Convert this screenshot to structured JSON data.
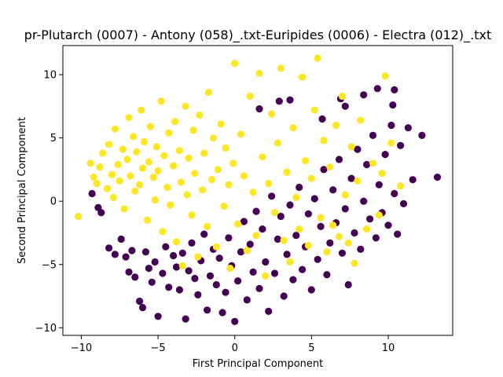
{
  "chart_data": {
    "type": "scatter",
    "title": "pr-Plutarch (0007) - Antony (058)_.txt-Euripides (0006) - Electra (012)_.txt",
    "xlabel": "First Principal Component",
    "ylabel": "Second Principal Component",
    "xlim": [
      -11.2,
      14.2
    ],
    "ylim": [
      -10.6,
      12.3
    ],
    "x_ticks": [
      -10,
      -5,
      0,
      5,
      10
    ],
    "y_ticks": [
      -10,
      -5,
      0,
      5,
      10
    ],
    "x_tick_labels": [
      "−10",
      "−5",
      "0",
      "5",
      "10"
    ],
    "y_tick_labels": [
      "−10",
      "−5",
      "0",
      "5",
      "10"
    ],
    "grid": false,
    "legend": "none",
    "colors": {
      "class0": "#440154",
      "class1": "#fde725"
    },
    "series": [
      {
        "color": "#440154",
        "points": [
          [
            -9.3,
            0.6
          ],
          [
            -8.9,
            -0.5
          ],
          [
            -8.7,
            -0.9
          ],
          [
            -8.2,
            -3.7
          ],
          [
            -7.8,
            -4.2
          ],
          [
            -7.4,
            -3.0
          ],
          [
            -7.1,
            -4.4
          ],
          [
            -6.9,
            -5.6
          ],
          [
            -6.7,
            -3.9
          ],
          [
            -6.5,
            -6.0
          ],
          [
            -6.2,
            -7.9
          ],
          [
            -6.0,
            -8.4
          ],
          [
            -5.8,
            -4.0
          ],
          [
            -5.6,
            -5.3
          ],
          [
            -5.4,
            -6.4
          ],
          [
            -5.2,
            -4.8
          ],
          [
            -5.0,
            -9.1
          ],
          [
            -4.7,
            -5.7
          ],
          [
            -4.5,
            -3.6
          ],
          [
            -4.3,
            -6.8
          ],
          [
            -4.0,
            -4.3
          ],
          [
            -3.8,
            -5.2
          ],
          [
            -3.6,
            -7.0
          ],
          [
            -3.4,
            -4.1
          ],
          [
            -3.2,
            -9.3
          ],
          [
            -3.0,
            -5.5
          ],
          [
            -2.8,
            -3.3
          ],
          [
            -2.6,
            -6.1
          ],
          [
            -2.4,
            -7.4
          ],
          [
            -2.2,
            -4.7
          ],
          [
            -2.0,
            -2.6
          ],
          [
            -1.8,
            -8.6
          ],
          [
            -1.6,
            -5.9
          ],
          [
            -1.4,
            -3.8
          ],
          [
            -1.2,
            -6.6
          ],
          [
            -1.0,
            -4.5
          ],
          [
            -0.8,
            -8.8
          ],
          [
            -0.6,
            -7.2
          ],
          [
            -0.4,
            -2.9
          ],
          [
            -0.2,
            -5.1
          ],
          [
            0.0,
            -9.5
          ],
          [
            0.2,
            -6.3
          ],
          [
            0.4,
            -4.0
          ],
          [
            0.6,
            -1.6
          ],
          [
            0.8,
            -7.8
          ],
          [
            1.0,
            -3.4
          ],
          [
            1.2,
            -5.6
          ],
          [
            1.4,
            -0.8
          ],
          [
            1.6,
            -6.9
          ],
          [
            1.8,
            -2.2
          ],
          [
            2.0,
            -4.8
          ],
          [
            2.2,
            -8.7
          ],
          [
            2.4,
            0.4
          ],
          [
            2.6,
            -5.7
          ],
          [
            2.8,
            -3.0
          ],
          [
            3.0,
            -1.2
          ],
          [
            3.2,
            -7.5
          ],
          [
            3.4,
            -4.2
          ],
          [
            3.6,
            -0.3
          ],
          [
            3.8,
            -6.2
          ],
          [
            4.0,
            -2.7
          ],
          [
            4.2,
            1.1
          ],
          [
            4.4,
            -5.4
          ],
          [
            4.6,
            -3.6
          ],
          [
            4.8,
            -1.0
          ],
          [
            5.0,
            -7.0
          ],
          [
            5.2,
            0.2
          ],
          [
            5.4,
            -4.6
          ],
          [
            5.6,
            -2.0
          ],
          [
            5.8,
            2.5
          ],
          [
            6.0,
            -5.8
          ],
          [
            6.2,
            -3.3
          ],
          [
            6.4,
            0.9
          ],
          [
            6.6,
            -1.7
          ],
          [
            6.8,
            3.3
          ],
          [
            7.0,
            -4.1
          ],
          [
            7.2,
            -0.6
          ],
          [
            7.4,
            -6.6
          ],
          [
            7.6,
            1.8
          ],
          [
            7.8,
            -2.5
          ],
          [
            8.0,
            4.1
          ],
          [
            8.2,
            -3.8
          ],
          [
            8.4,
            0.0
          ],
          [
            8.6,
            2.9
          ],
          [
            8.8,
            -1.4
          ],
          [
            9.0,
            5.2
          ],
          [
            9.2,
            -2.9
          ],
          [
            9.4,
            1.3
          ],
          [
            9.6,
            -0.9
          ],
          [
            9.8,
            3.7
          ],
          [
            10.0,
            -1.9
          ],
          [
            10.2,
            6.0
          ],
          [
            10.4,
            0.6
          ],
          [
            10.6,
            -2.6
          ],
          [
            10.8,
            4.4
          ],
          [
            11.0,
            -0.2
          ],
          [
            11.3,
            5.8
          ],
          [
            11.6,
            1.7
          ],
          [
            12.2,
            5.2
          ],
          [
            13.2,
            1.9
          ],
          [
            10.4,
            8.8
          ],
          [
            10.3,
            7.6
          ],
          [
            9.3,
            8.9
          ],
          [
            8.4,
            8.4
          ],
          [
            7.2,
            7.5
          ],
          [
            6.9,
            8.1
          ],
          [
            5.7,
            6.5
          ],
          [
            3.6,
            8.0
          ],
          [
            2.9,
            7.9
          ],
          [
            1.6,
            7.3
          ]
        ]
      },
      {
        "color": "#fde725",
        "points": [
          [
            -10.2,
            -1.2
          ],
          [
            -9.4,
            3.0
          ],
          [
            -9.2,
            1.9
          ],
          [
            -9.0,
            1.4
          ],
          [
            -8.8,
            2.7
          ],
          [
            -8.6,
            3.8
          ],
          [
            -8.3,
            1.0
          ],
          [
            -8.2,
            4.5
          ],
          [
            -8.0,
            2.1
          ],
          [
            -7.9,
            0.3
          ],
          [
            -7.8,
            5.7
          ],
          [
            -7.6,
            2.9
          ],
          [
            -7.5,
            1.6
          ],
          [
            -7.3,
            4.1
          ],
          [
            -7.2,
            -0.6
          ],
          [
            -7.0,
            3.3
          ],
          [
            -6.9,
            6.6
          ],
          [
            -6.8,
            2.0
          ],
          [
            -6.6,
            5.1
          ],
          [
            -6.5,
            0.8
          ],
          [
            -6.4,
            3.9
          ],
          [
            -6.2,
            1.3
          ],
          [
            -6.1,
            7.2
          ],
          [
            -6.0,
            2.6
          ],
          [
            -5.9,
            4.7
          ],
          [
            -5.7,
            -1.5
          ],
          [
            -5.6,
            3.1
          ],
          [
            -5.5,
            5.9
          ],
          [
            -5.3,
            1.9
          ],
          [
            -5.2,
            0.1
          ],
          [
            -5.1,
            4.3
          ],
          [
            -5.0,
            2.4
          ],
          [
            -4.8,
            7.9
          ],
          [
            -4.7,
            -2.4
          ],
          [
            -4.6,
            3.6
          ],
          [
            -4.4,
            1.1
          ],
          [
            -4.3,
            5.4
          ],
          [
            -4.2,
            -0.3
          ],
          [
            -4.0,
            2.8
          ],
          [
            -3.9,
            6.3
          ],
          [
            -3.8,
            -3.2
          ],
          [
            -3.6,
            4.0
          ],
          [
            -3.5,
            1.5
          ],
          [
            -3.4,
            -5.1
          ],
          [
            -3.2,
            7.5
          ],
          [
            -3.1,
            0.5
          ],
          [
            -3.0,
            3.4
          ],
          [
            -2.8,
            -1.1
          ],
          [
            -2.7,
            5.6
          ],
          [
            -2.6,
            2.2
          ],
          [
            -2.4,
            -4.4
          ],
          [
            -2.3,
            6.8
          ],
          [
            -2.1,
            0.9
          ],
          [
            -2.0,
            3.8
          ],
          [
            -1.8,
            -2.0
          ],
          [
            -1.7,
            8.6
          ],
          [
            -1.5,
            1.7
          ],
          [
            -1.4,
            5.0
          ],
          [
            -1.2,
            -3.6
          ],
          [
            -1.1,
            2.5
          ],
          [
            -0.9,
            6.1
          ],
          [
            -0.7,
            -0.4
          ],
          [
            -0.6,
            4.2
          ],
          [
            -0.4,
            1.3
          ],
          [
            -0.3,
            -5.3
          ],
          [
            -0.1,
            3.0
          ],
          [
            0.0,
            10.9
          ],
          [
            0.2,
            -1.8
          ],
          [
            0.4,
            5.3
          ],
          [
            0.6,
            2.0
          ],
          [
            0.8,
            -3.9
          ],
          [
            1.0,
            8.3
          ],
          [
            1.2,
            0.7
          ],
          [
            1.4,
            -2.7
          ],
          [
            1.6,
            10.1
          ],
          [
            1.8,
            3.5
          ],
          [
            2.0,
            -5.9
          ],
          [
            2.2,
            1.4
          ],
          [
            2.4,
            6.9
          ],
          [
            2.6,
            -0.9
          ],
          [
            2.8,
            4.6
          ],
          [
            3.0,
            10.5
          ],
          [
            3.2,
            -3.1
          ],
          [
            3.4,
            2.3
          ],
          [
            3.6,
            -4.8
          ],
          [
            3.8,
            5.8
          ],
          [
            4.0,
            0.3
          ],
          [
            4.2,
            -2.2
          ],
          [
            4.4,
            9.8
          ],
          [
            4.6,
            3.2
          ],
          [
            4.8,
            -3.5
          ],
          [
            5.0,
            1.8
          ],
          [
            5.2,
            7.2
          ],
          [
            5.4,
            11.3
          ],
          [
            5.6,
            -1.3
          ],
          [
            5.8,
            4.8
          ],
          [
            6.0,
            -4.0
          ],
          [
            6.2,
            2.7
          ],
          [
            6.4,
            -1.9
          ],
          [
            6.6,
            6.0
          ],
          [
            6.8,
            -2.8
          ],
          [
            7.0,
            8.3
          ],
          [
            7.2,
            0.5
          ],
          [
            7.4,
            -3.3
          ],
          [
            7.6,
            4.3
          ],
          [
            7.8,
            -4.9
          ],
          [
            8.0,
            1.6
          ],
          [
            8.2,
            6.4
          ],
          [
            8.6,
            -2.2
          ],
          [
            9.0,
            3.0
          ],
          [
            9.4,
            -1.1
          ],
          [
            9.6,
            2.2
          ],
          [
            9.8,
            9.9
          ],
          [
            10.2,
            4.6
          ],
          [
            10.8,
            1.2
          ]
        ]
      }
    ]
  }
}
